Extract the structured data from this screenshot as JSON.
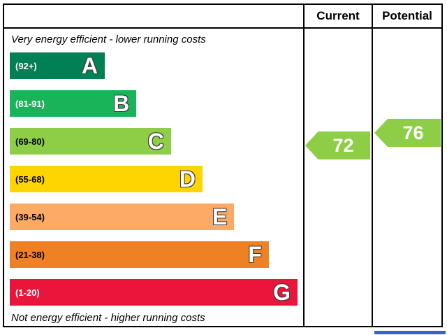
{
  "header": {
    "current_label": "Current",
    "potential_label": "Potential"
  },
  "chart_data": {
    "type": "bar",
    "title": "Energy efficiency rating chart (EPC)",
    "top_caption": "Very energy efficient - lower running costs",
    "bottom_caption": "Not energy efficient - higher running costs",
    "bands": [
      {
        "letter": "A",
        "range": "(92+)",
        "color": "#008054",
        "label_color": "#ffffff",
        "width_pct": 33
      },
      {
        "letter": "B",
        "range": "(81-91)",
        "color": "#19b459",
        "label_color": "#ffffff",
        "width_pct": 44
      },
      {
        "letter": "C",
        "range": "(69-80)",
        "color": "#8dce46",
        "label_color": "#000000",
        "width_pct": 56
      },
      {
        "letter": "D",
        "range": "(55-68)",
        "color": "#ffd500",
        "label_color": "#000000",
        "width_pct": 67
      },
      {
        "letter": "E",
        "range": "(39-54)",
        "color": "#fcaa65",
        "label_color": "#000000",
        "width_pct": 78
      },
      {
        "letter": "F",
        "range": "(21-38)",
        "color": "#ef8023",
        "label_color": "#000000",
        "width_pct": 90
      },
      {
        "letter": "G",
        "range": "(1-20)",
        "color": "#e9153b",
        "label_color": "#ffffff",
        "width_pct": 100
      }
    ],
    "current": {
      "value": "72",
      "band": "C",
      "color": "#8dce46"
    },
    "potential": {
      "value": "76",
      "band": "C",
      "color": "#8dce46"
    }
  },
  "footer": {
    "accent_color": "#3366cc"
  }
}
